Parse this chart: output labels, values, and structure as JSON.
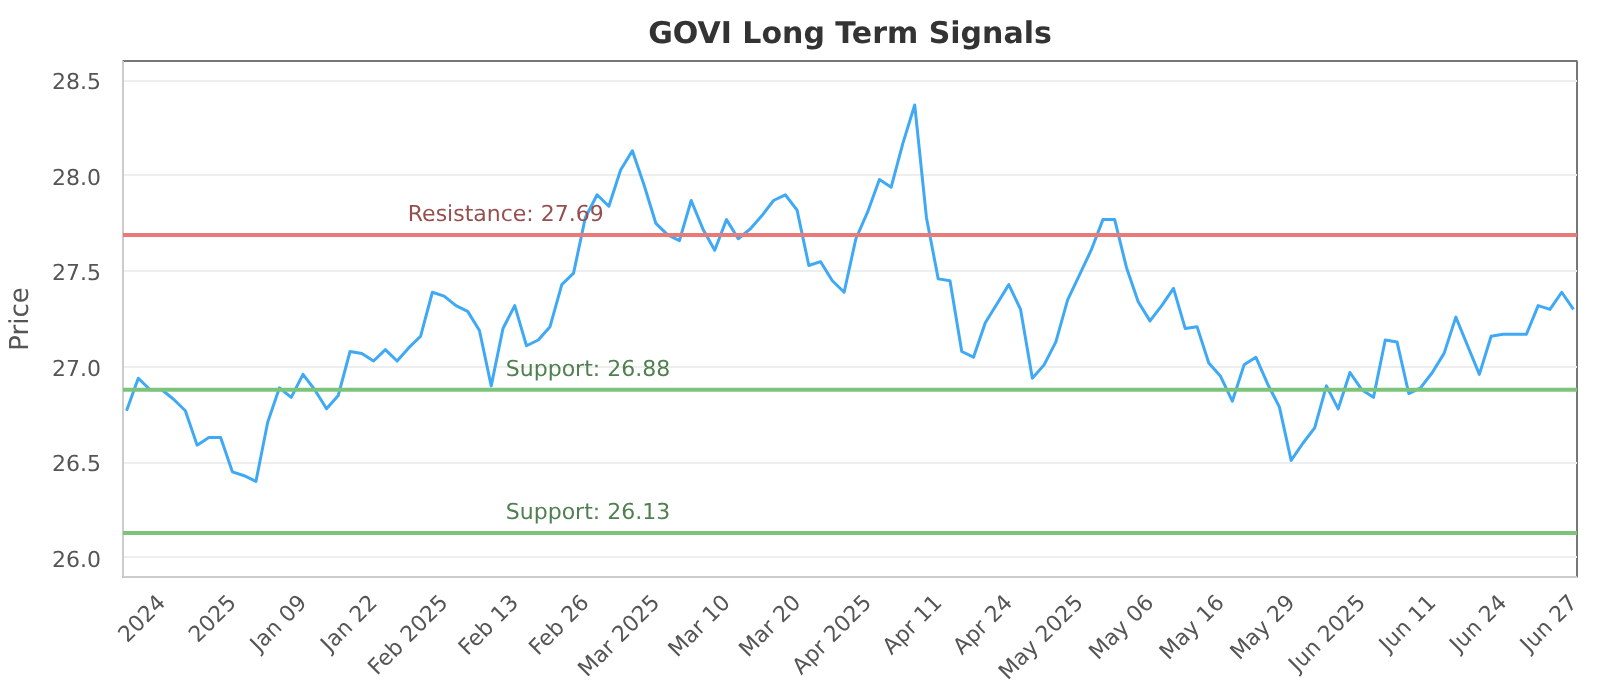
{
  "chart_data": {
    "type": "line",
    "title": "GOVI Long Term Signals",
    "ylabel": "Price",
    "categories": [
      null,
      null,
      null,
      "2024",
      null,
      null,
      null,
      null,
      null,
      "2025",
      null,
      null,
      null,
      null,
      null,
      "Jan 09",
      null,
      null,
      null,
      null,
      null,
      "Jan 22",
      null,
      null,
      null,
      null,
      null,
      "Feb 2025",
      null,
      null,
      null,
      null,
      null,
      "Feb 13",
      null,
      null,
      null,
      null,
      null,
      "Feb 26",
      null,
      null,
      null,
      null,
      null,
      "Mar 2025",
      null,
      null,
      null,
      null,
      null,
      "Mar 10",
      null,
      null,
      null,
      null,
      null,
      "Mar 20",
      null,
      null,
      null,
      null,
      null,
      "Apr 2025",
      null,
      null,
      null,
      null,
      null,
      "Apr 11",
      null,
      null,
      null,
      null,
      null,
      "Apr 24",
      null,
      null,
      null,
      null,
      null,
      "May 2025",
      null,
      null,
      null,
      null,
      null,
      "May 06",
      null,
      null,
      null,
      null,
      null,
      "May 16",
      null,
      null,
      null,
      null,
      null,
      "May 29",
      null,
      null,
      null,
      null,
      null,
      "Jun 2025",
      null,
      null,
      null,
      null,
      null,
      "Jun 11",
      null,
      null,
      null,
      null,
      null,
      "Jun 24",
      null,
      null,
      null,
      null,
      null,
      "Jun 27"
    ],
    "series": [
      {
        "color": "#3fa9f5",
        "values": [
          26.77,
          26.94,
          26.88,
          26.88,
          26.83,
          26.77,
          26.59,
          26.63,
          26.63,
          26.45,
          26.43,
          26.4,
          26.71,
          26.89,
          26.84,
          26.96,
          26.88,
          26.78,
          26.85,
          27.08,
          27.07,
          27.03,
          27.09,
          27.03,
          27.1,
          27.16,
          27.39,
          27.37,
          27.32,
          27.29,
          27.19,
          26.9,
          27.2,
          27.32,
          27.11,
          27.14,
          27.21,
          27.43,
          27.49,
          27.78,
          27.9,
          27.84,
          28.03,
          28.13,
          27.95,
          27.75,
          27.69,
          27.66,
          27.87,
          27.72,
          27.61,
          27.77,
          27.67,
          27.72,
          27.79,
          27.87,
          27.9,
          27.82,
          27.53,
          27.55,
          27.45,
          27.39,
          27.67,
          27.81,
          27.98,
          27.94,
          28.17,
          28.37,
          27.78,
          27.46,
          27.45,
          27.08,
          27.05,
          27.23,
          27.33,
          27.43,
          27.3,
          26.94,
          27.01,
          27.13,
          27.35,
          27.48,
          27.61,
          27.77,
          27.77,
          27.52,
          27.34,
          27.24,
          27.32,
          27.41,
          27.2,
          27.21,
          27.02,
          26.95,
          26.82,
          27.01,
          27.05,
          26.91,
          26.79,
          26.51,
          26.6,
          26.68,
          26.9,
          26.78,
          26.97,
          26.88,
          26.84,
          27.14,
          27.13,
          26.86,
          26.89,
          26.97,
          27.07,
          27.26,
          27.11,
          26.96,
          27.16,
          27.17,
          27.17,
          27.17,
          27.32,
          27.3,
          27.39,
          27.3
        ]
      }
    ],
    "ylim": [
      25.9,
      28.6
    ],
    "yticks": [
      {
        "value": 26,
        "label": "26.0"
      },
      26.5,
      {
        "value": 27,
        "label": "27.0"
      },
      27.5,
      {
        "value": 28,
        "label": "28.0"
      },
      28.5
    ],
    "ref_lines": [
      {
        "axis": "y",
        "value": 27.69,
        "label": "Resistance: 27.69",
        "color": "#e87a7a"
      },
      {
        "axis": "y",
        "value": 26.88,
        "label": "Support: 26.88",
        "color": "#7cc47c"
      },
      {
        "axis": "y",
        "value": 26.13,
        "label": "Support: 26.13",
        "color": "#7cc47c"
      }
    ],
    "grid": "y",
    "marker": "none",
    "line_style": "solid"
  }
}
